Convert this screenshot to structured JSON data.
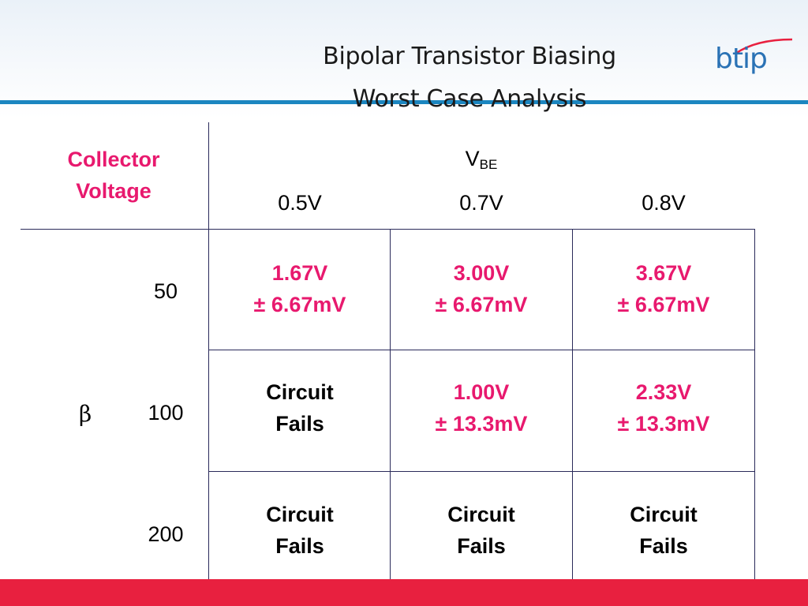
{
  "slide": {
    "title_line1": "Bipolar Transistor Biasing",
    "title_line2": "Worst Case Analysis",
    "logo_text": "btip",
    "colors": {
      "accent": "#e8196e",
      "header_rule": "#1b86c0",
      "footer_bar": "#e8203f",
      "logo": "#2a72b5"
    }
  },
  "table": {
    "row_header": {
      "line1": "Collector",
      "line2": "Voltage"
    },
    "vbe_label": "V",
    "vbe_subscript": "BE",
    "vbe_values": [
      "0.5V",
      "0.7V",
      "0.8V"
    ],
    "beta_symbol": "β",
    "beta_values": [
      "50",
      "100",
      "200"
    ],
    "rows": [
      [
        {
          "line1": "1.67V",
          "line2": "± 6.67mV",
          "kind": "val"
        },
        {
          "line1": "3.00V",
          "line2": "± 6.67mV",
          "kind": "val"
        },
        {
          "line1": "3.67V",
          "line2": "± 6.67mV",
          "kind": "val"
        }
      ],
      [
        {
          "line1": "Circuit",
          "line2": "Fails",
          "kind": "fail"
        },
        {
          "line1": "1.00V",
          "line2": "± 13.3mV",
          "kind": "val"
        },
        {
          "line1": "2.33V",
          "line2": "± 13.3mV",
          "kind": "val"
        }
      ],
      [
        {
          "line1": "Circuit",
          "line2": "Fails",
          "kind": "fail"
        },
        {
          "line1": "Circuit",
          "line2": "Fails",
          "kind": "fail"
        },
        {
          "line1": "Circuit",
          "line2": "Fails",
          "kind": "fail"
        }
      ]
    ]
  }
}
